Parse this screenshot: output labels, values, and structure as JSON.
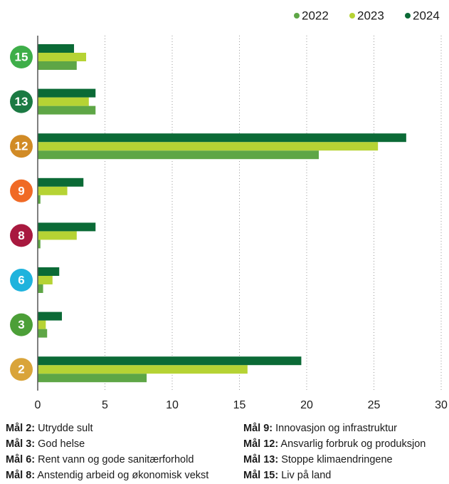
{
  "chart_data": {
    "type": "hbar",
    "categories": [
      "15",
      "13",
      "12",
      "9",
      "8",
      "6",
      "3",
      "2"
    ],
    "category_colors": [
      "#3eae49",
      "#1b7a43",
      "#d18b26",
      "#f06a26",
      "#a8193f",
      "#1fb3dd",
      "#4c9f38",
      "#d9a43a"
    ],
    "series": [
      {
        "name": "2022",
        "color": "#5ea646",
        "values": [
          2.9,
          4.3,
          20.9,
          0.2,
          0.2,
          0.4,
          0.7,
          8.1
        ]
      },
      {
        "name": "2023",
        "color": "#b6d334",
        "values": [
          3.6,
          3.8,
          25.3,
          2.2,
          2.9,
          1.1,
          0.6,
          15.6
        ]
      },
      {
        "name": "2024",
        "color": "#0b6a36",
        "values": [
          2.7,
          4.3,
          27.4,
          3.4,
          4.3,
          1.6,
          1.8,
          19.6
        ]
      }
    ],
    "xlim": [
      0,
      30
    ],
    "xticks": [
      0,
      5,
      10,
      15,
      20,
      25,
      30
    ],
    "grid": true,
    "notes": [
      {
        "label": "Mål 2:",
        "text": "Utrydde sult"
      },
      {
        "label": "Mål 3:",
        "text": "God helse"
      },
      {
        "label": "Mål 6:",
        "text": "Rent vann og gode sanitærforhold"
      },
      {
        "label": "Mål 8:",
        "text": "Anstendig arbeid og økonomisk vekst"
      },
      {
        "label": "Mål 9:",
        "text": "Innovasjon og infrastruktur"
      },
      {
        "label": "Mål 12:",
        "text": "Ansvarlig forbruk og produksjon"
      },
      {
        "label": "Mål 13:",
        "text": "Stoppe klimaendringene"
      },
      {
        "label": "Mål 15:",
        "text": "Liv på land"
      }
    ]
  }
}
